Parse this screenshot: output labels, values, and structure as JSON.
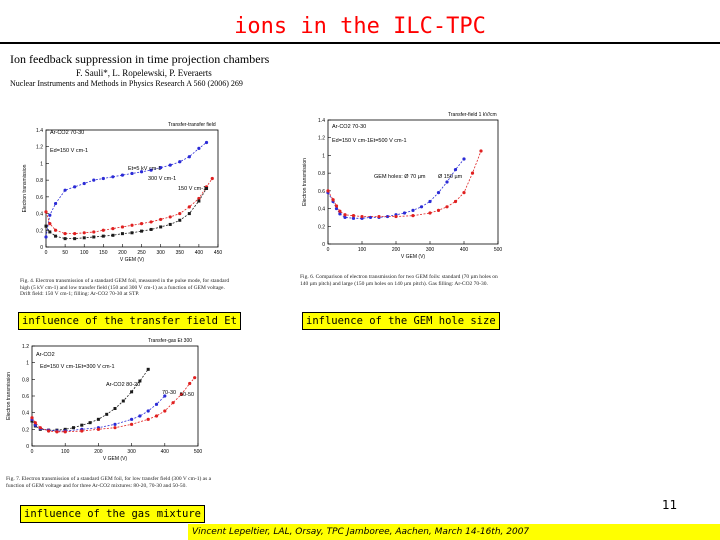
{
  "title": "ions in the ILC-TPC",
  "paper": {
    "title": "Ion feedback suppression in time projection chambers",
    "authors": "F. Sauli*, L. Ropelewski, P. Everaerts",
    "journal": "Nuclear Instruments and Methods in Physics Research A 560 (2006) 269"
  },
  "labels": {
    "transfer": "influence of the transfer field Et",
    "hole": "influence of the GEM hole size",
    "gas": "influence of the gas mixture"
  },
  "page_number": "11",
  "footer": "Vincent Lepeltier, LAL, Orsay, TPC Jamboree, Aachen, March 14-16th, 2007",
  "figures": [
    {
      "fig_title": "Transfer-transfer field",
      "ylabel": "Electron transmission",
      "xlabel": "V GEM (V)",
      "annotations": [
        "Ar-CO2 70-30",
        "Ed=150 V cm-1",
        "Et=5 kV cm-1",
        "300 V cm-1",
        "150 V cm-1"
      ],
      "caption": "Fig. 4. Electron transmission of a standard GEM foil, measured in the pulse mode, for standard high (5 kV cm-1) and low transfer field (150 and 300 V cm-1) as a function of GEM voltage. Drift field: 150 V cm-1; filling: Ar-CO2 70-30 at STP.",
      "colors": [
        "#2b2bd6",
        "#e02020",
        "#1a1a1a"
      ]
    },
    {
      "fig_title": "Transfer-field 1 kV/cm",
      "ylabel": "Electron transmission",
      "xlabel": "V GEM (V)",
      "annotations": [
        "Ar-CO2 70-30",
        "Ed=150 V cm-1",
        "Et=500 V cm-1",
        "GEM holes: Ø 70 µm",
        "Ø 150 µm"
      ],
      "caption": "Fig. 6. Comparison of electron transmission for two GEM foils: standard (70 µm holes on 140 µm pitch) and large (150 µm holes on 140 µm pitch). Gas filling: Ar-CO2 70-30.",
      "colors": [
        "#2b2bd6",
        "#e02020"
      ]
    },
    {
      "fig_title": "Transfer-gas Et 300",
      "ylabel": "Electron transmission",
      "xlabel": "V GEM (V)",
      "annotations": [
        "Ar-CO2",
        "Ed=150 V cm-1",
        "Et=300 V cm-1",
        "Ar-CO2  80-20",
        "70-30",
        "50-50"
      ],
      "caption": "Fig. 7. Electron transmission of a standard GEM foil, for low transfer field (300 V cm-1) as a function of GEM voltage and for three Ar-CO2 mixtures: 80-20, 70-30 and 50-50.",
      "colors": [
        "#1a1a1a",
        "#2b2bd6",
        "#e02020"
      ]
    }
  ],
  "chart_data": [
    {
      "type": "line",
      "title": "Transfer-transfer field",
      "xlabel": "V GEM (V)",
      "ylabel": "Electron transmission",
      "xlim": [
        0,
        450
      ],
      "ylim": [
        0,
        1.4
      ],
      "xticks": [
        0,
        50,
        100,
        150,
        200,
        250,
        300,
        350,
        400,
        450
      ],
      "yticks": [
        0,
        0.2,
        0.4,
        0.6,
        0.8,
        1,
        1.2,
        1.4
      ],
      "series": [
        {
          "name": "Et=5 kV cm-1",
          "x": [
            0,
            10,
            25,
            50,
            75,
            100,
            125,
            150,
            175,
            200,
            225,
            250,
            275,
            300,
            325,
            350,
            375,
            400,
            420
          ],
          "values": [
            0.12,
            0.38,
            0.52,
            0.68,
            0.72,
            0.76,
            0.8,
            0.82,
            0.84,
            0.86,
            0.88,
            0.9,
            0.92,
            0.95,
            0.98,
            1.02,
            1.08,
            1.18,
            1.25
          ]
        },
        {
          "name": "300 V cm-1",
          "x": [
            0,
            10,
            25,
            50,
            75,
            100,
            125,
            150,
            175,
            200,
            225,
            250,
            275,
            300,
            325,
            350,
            375,
            400,
            420,
            435
          ],
          "values": [
            0.42,
            0.28,
            0.2,
            0.16,
            0.16,
            0.17,
            0.18,
            0.2,
            0.22,
            0.24,
            0.26,
            0.28,
            0.3,
            0.33,
            0.36,
            0.4,
            0.48,
            0.58,
            0.72,
            0.82
          ]
        },
        {
          "name": "150 V cm-1",
          "x": [
            0,
            10,
            25,
            50,
            75,
            100,
            125,
            150,
            175,
            200,
            225,
            250,
            275,
            300,
            325,
            350,
            375,
            400,
            420
          ],
          "values": [
            0.25,
            0.18,
            0.13,
            0.1,
            0.1,
            0.11,
            0.12,
            0.13,
            0.14,
            0.16,
            0.17,
            0.19,
            0.21,
            0.24,
            0.27,
            0.32,
            0.4,
            0.55,
            0.7
          ]
        }
      ]
    },
    {
      "type": "line",
      "title": "Transfer-field 1 kV/cm",
      "xlabel": "V GEM (V)",
      "ylabel": "Electron transmission",
      "xlim": [
        0,
        500
      ],
      "ylim": [
        0,
        1.4
      ],
      "xticks": [
        0,
        100,
        200,
        300,
        400,
        500
      ],
      "yticks": [
        0,
        0.2,
        0.4,
        0.6,
        0.8,
        1,
        1.2,
        1.4
      ],
      "series": [
        {
          "name": "Ø 70 µm",
          "x": [
            0,
            15,
            25,
            35,
            50,
            75,
            100,
            125,
            150,
            175,
            200,
            225,
            250,
            275,
            300,
            325,
            350,
            375,
            400
          ],
          "values": [
            0.58,
            0.48,
            0.4,
            0.34,
            0.3,
            0.29,
            0.29,
            0.3,
            0.3,
            0.31,
            0.33,
            0.35,
            0.38,
            0.42,
            0.48,
            0.58,
            0.7,
            0.84,
            0.96
          ]
        },
        {
          "name": "Ø 150 µm",
          "x": [
            0,
            15,
            25,
            35,
            50,
            75,
            100,
            150,
            200,
            250,
            300,
            325,
            350,
            375,
            400,
            425,
            450
          ],
          "values": [
            0.6,
            0.5,
            0.43,
            0.37,
            0.33,
            0.32,
            0.31,
            0.31,
            0.31,
            0.32,
            0.35,
            0.38,
            0.42,
            0.48,
            0.58,
            0.8,
            1.05
          ]
        }
      ]
    },
    {
      "type": "line",
      "title": "Transfer-gas Et 300",
      "xlabel": "V GEM (V)",
      "ylabel": "Electron transmission",
      "xlim": [
        0,
        500
      ],
      "ylim": [
        0,
        1.2
      ],
      "xticks": [
        0,
        100,
        200,
        300,
        400,
        500
      ],
      "yticks": [
        0,
        0.2,
        0.4,
        0.6,
        0.8,
        1,
        1.2
      ],
      "series": [
        {
          "name": "80-20",
          "x": [
            0,
            10,
            25,
            50,
            75,
            100,
            125,
            150,
            175,
            200,
            225,
            250,
            275,
            300,
            325,
            350
          ],
          "values": [
            0.3,
            0.24,
            0.2,
            0.19,
            0.19,
            0.2,
            0.22,
            0.25,
            0.28,
            0.32,
            0.38,
            0.45,
            0.54,
            0.65,
            0.78,
            0.92
          ]
        },
        {
          "name": "70-30",
          "x": [
            0,
            10,
            25,
            50,
            75,
            100,
            150,
            200,
            250,
            300,
            325,
            350,
            375,
            400
          ],
          "values": [
            0.32,
            0.25,
            0.21,
            0.19,
            0.18,
            0.18,
            0.2,
            0.22,
            0.26,
            0.32,
            0.36,
            0.42,
            0.5,
            0.6
          ]
        },
        {
          "name": "50-50",
          "x": [
            0,
            10,
            25,
            50,
            75,
            100,
            150,
            200,
            250,
            300,
            350,
            375,
            400,
            425,
            450,
            475,
            490
          ],
          "values": [
            0.34,
            0.28,
            0.22,
            0.18,
            0.17,
            0.17,
            0.18,
            0.2,
            0.22,
            0.26,
            0.32,
            0.36,
            0.42,
            0.52,
            0.62,
            0.75,
            0.82
          ]
        }
      ]
    }
  ]
}
